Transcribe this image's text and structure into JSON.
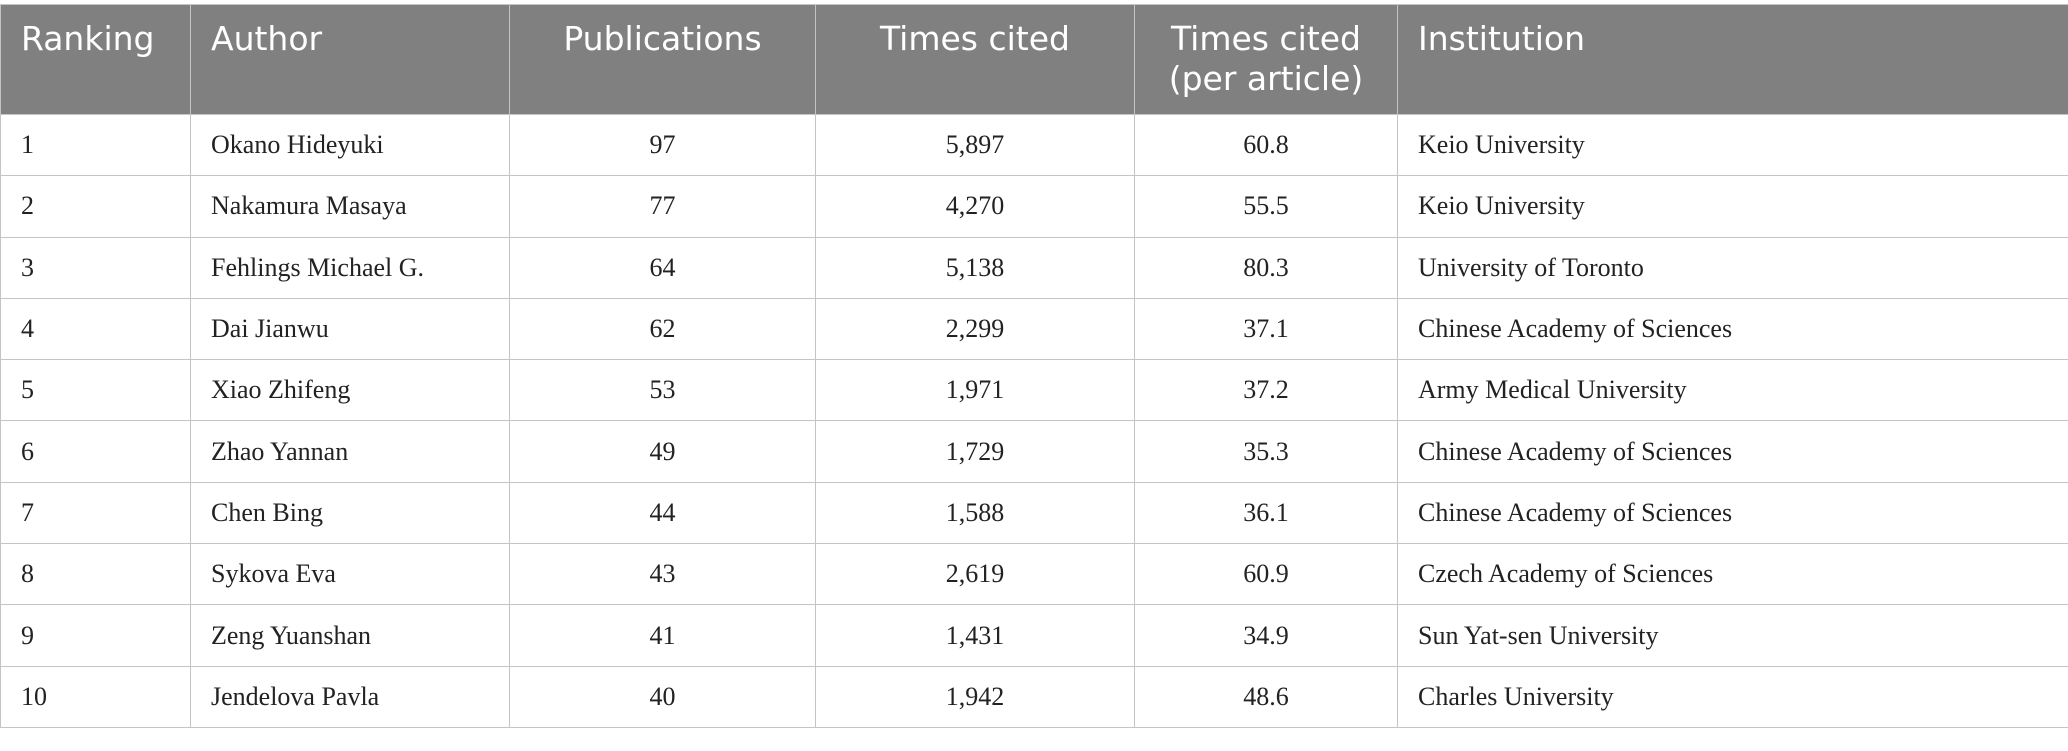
{
  "table": {
    "header": [
      "Ranking",
      "Author",
      "Publications",
      "Times cited",
      "Times cited (per article)",
      "Institution"
    ],
    "rows": [
      [
        "1",
        "Okano Hideyuki",
        "97",
        "5,897",
        "60.8",
        "Keio University"
      ],
      [
        "2",
        "Nakamura Masaya",
        "77",
        "4,270",
        "55.5",
        "Keio University"
      ],
      [
        "3",
        "Fehlings Michael G.",
        "64",
        "5,138",
        "80.3",
        "University of Toronto"
      ],
      [
        "4",
        "Dai Jianwu",
        "62",
        "2,299",
        "37.1",
        "Chinese Academy of Sciences"
      ],
      [
        "5",
        "Xiao Zhifeng",
        "53",
        "1,971",
        "37.2",
        "Army Medical University"
      ],
      [
        "6",
        "Zhao Yannan",
        "49",
        "1,729",
        "35.3",
        "Chinese Academy of Sciences"
      ],
      [
        "7",
        "Chen Bing",
        "44",
        "1,588",
        "36.1",
        "Chinese Academy of Sciences"
      ],
      [
        "8",
        "Sykova Eva",
        "43",
        "2,619",
        "60.9",
        "Czech Academy of Sciences"
      ],
      [
        "9",
        "Zeng Yuanshan",
        "41",
        "1,431",
        "34.9",
        "Sun Yat-sen University"
      ],
      [
        "10",
        "Jendelova Pavla",
        "40",
        "1,942",
        "48.6",
        "Charles University"
      ]
    ]
  }
}
